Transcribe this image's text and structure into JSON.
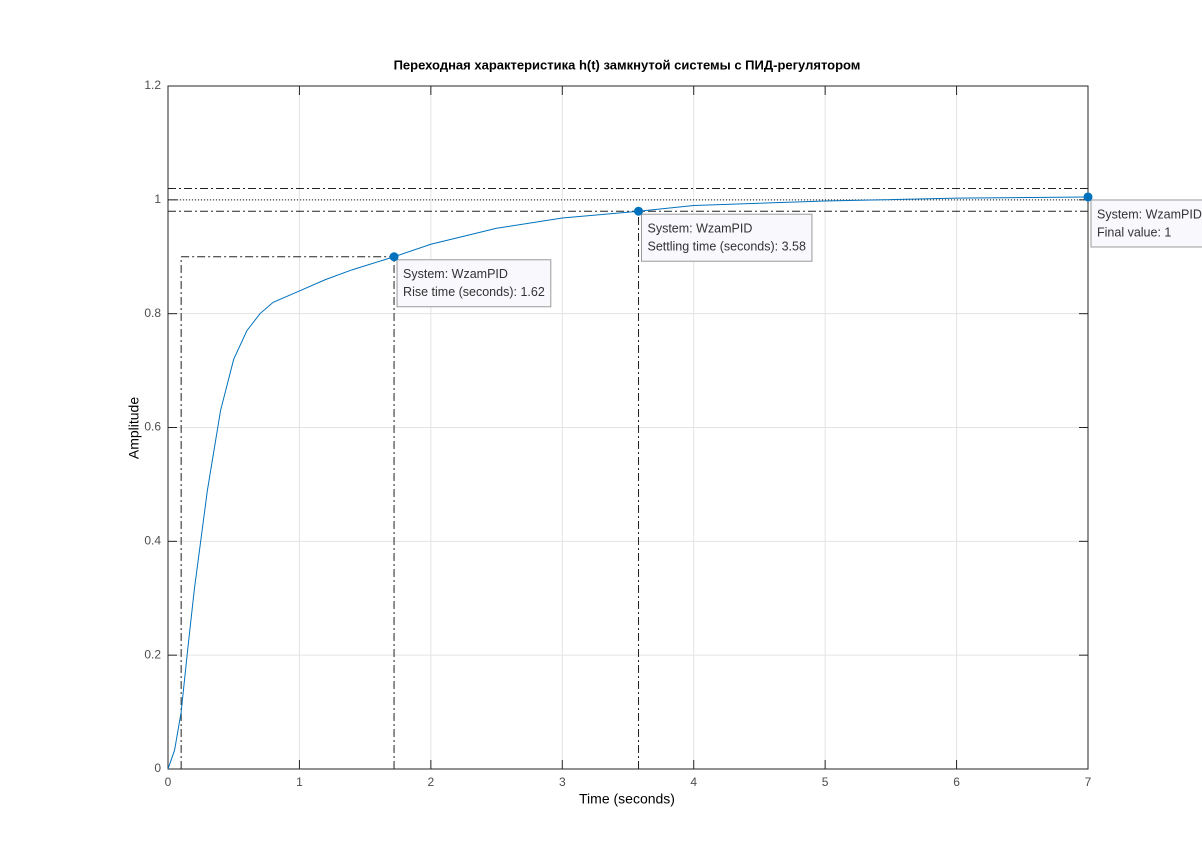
{
  "chart_data": {
    "type": "line",
    "title": "Переходная характеристика h(t) замкнутой системы с ПИД-регулятором",
    "x_label": "Time (seconds)",
    "y_label": "Amplitude",
    "xlim": [
      0,
      7
    ],
    "ylim": [
      0,
      1.2
    ],
    "xticks": [
      0,
      1,
      2,
      3,
      4,
      5,
      6,
      7
    ],
    "yticks": [
      0,
      0.2,
      0.4,
      0.6,
      0.8,
      1,
      1.2
    ],
    "grid": true,
    "series": [
      {
        "name": "WzamPID",
        "color": "#0072bd",
        "x": [
          0,
          0.05,
          0.1,
          0.15,
          0.2,
          0.3,
          0.4,
          0.5,
          0.6,
          0.7,
          0.8,
          1.0,
          1.2,
          1.4,
          1.72,
          2.0,
          2.5,
          3.0,
          3.58,
          4.0,
          5.0,
          6.0,
          7.0
        ],
        "values": [
          0,
          0.033,
          0.1,
          0.21,
          0.315,
          0.49,
          0.63,
          0.72,
          0.77,
          0.8,
          0.82,
          0.84,
          0.86,
          0.877,
          0.9,
          0.922,
          0.95,
          0.968,
          0.98,
          0.99,
          0.998,
          1.003,
          1.005
        ]
      }
    ],
    "guides": [
      {
        "x": [
          0,
          7
        ],
        "y": [
          1.02,
          1.02
        ],
        "style": "dashdot"
      },
      {
        "x": [
          0,
          7
        ],
        "y": [
          0.98,
          0.98
        ],
        "style": "dashdot"
      },
      {
        "x": [
          0,
          7
        ],
        "y": [
          1,
          1
        ],
        "style": "dotted"
      },
      {
        "x": [
          0.1,
          1.72
        ],
        "y": [
          0.9,
          0.9
        ],
        "style": "dashdot"
      },
      {
        "x": [
          0.1,
          0.1
        ],
        "y": [
          0,
          0.9
        ],
        "style": "dashdot"
      },
      {
        "x": [
          1.72,
          1.72
        ],
        "y": [
          0,
          0.9
        ],
        "style": "dashdot"
      },
      {
        "x": [
          3.58,
          3.58
        ],
        "y": [
          0,
          0.98
        ],
        "style": "dashdot"
      }
    ],
    "datatips": [
      {
        "x": 1.72,
        "y": 0.9,
        "lines": [
          "System: WzamPID",
          "Rise time (seconds): 1.62"
        ]
      },
      {
        "x": 3.58,
        "y": 0.98,
        "lines": [
          "System: WzamPID",
          "Settling time (seconds): 3.58"
        ]
      },
      {
        "x": 7.0,
        "y": 1.005,
        "lines": [
          "System: WzamPID",
          "Final value: 1"
        ]
      }
    ]
  }
}
